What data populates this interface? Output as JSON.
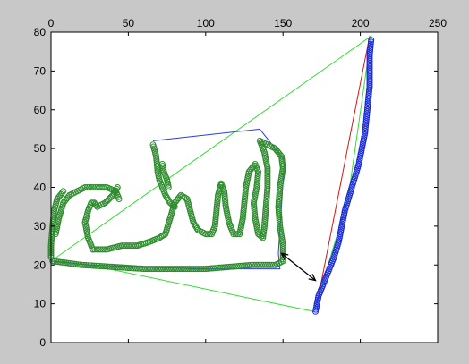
{
  "chart_data": {
    "type": "scatter",
    "title": "",
    "xlabel": "",
    "ylabel": "",
    "xlim": [
      0,
      250
    ],
    "ylim": [
      0,
      80
    ],
    "x_ticks": [
      0,
      50,
      100,
      150,
      200,
      250
    ],
    "y_ticks": [
      0,
      10,
      20,
      30,
      40,
      50,
      60,
      70,
      80
    ],
    "x_axis_position": "top",
    "grid": false,
    "legend": "none",
    "colors": {
      "figure_bg": "#c8c8c8",
      "axes_bg": "#ffffff",
      "green_stroke": "#2e8b2e",
      "blue_stroke": "#1a2bd6",
      "convex_hull": "#33dd33",
      "secondary_hull": "#2a3ae0",
      "red_line": "#e01010",
      "arrow": "#000000"
    },
    "series": [
      {
        "marker": "circle",
        "color": "#2e8b2e",
        "paths": [
          [
            [
              1,
              21
            ],
            [
              20,
              20
            ],
            [
              60,
              19
            ],
            [
              100,
              19
            ],
            [
              130,
              20
            ],
            [
              145,
              20
            ],
            [
              150,
              21
            ],
            [
              150,
              25
            ],
            [
              148,
              30
            ],
            [
              147,
              35
            ],
            [
              148,
              40
            ],
            [
              150,
              45
            ],
            [
              149,
              48
            ],
            [
              145,
              50
            ],
            [
              140,
              51
            ],
            [
              135,
              52
            ],
            [
              138,
              49
            ],
            [
              140,
              45
            ],
            [
              140,
              40
            ],
            [
              139,
              35
            ],
            [
              138,
              30
            ],
            [
              137,
              27
            ],
            [
              134,
              28
            ],
            [
              132,
              32
            ],
            [
              131,
              36
            ],
            [
              133,
              40
            ],
            [
              134,
              44
            ],
            [
              132,
              46
            ],
            [
              128,
              44
            ],
            [
              126,
              40
            ],
            [
              125,
              36
            ],
            [
              124,
              32
            ],
            [
              122,
              28
            ],
            [
              118,
              28
            ],
            [
              115,
              31
            ],
            [
              113,
              35
            ],
            [
              112,
              39
            ],
            [
              110,
              41
            ],
            [
              108,
              38
            ],
            [
              107,
              34
            ],
            [
              106,
              30
            ],
            [
              104,
              28
            ],
            [
              100,
              28
            ],
            [
              95,
              29
            ],
            [
              92,
              31
            ],
            [
              90,
              34
            ],
            [
              88,
              37
            ],
            [
              84,
              38
            ],
            [
              80,
              36
            ],
            [
              77,
              32
            ],
            [
              74,
              28
            ],
            [
              70,
              27
            ],
            [
              64,
              26
            ],
            [
              56,
              25
            ],
            [
              46,
              25
            ],
            [
              36,
              24
            ],
            [
              27,
              24
            ]
          ],
          [
            [
              27,
              24
            ],
            [
              24,
              27
            ],
            [
              22,
              31
            ],
            [
              24,
              34
            ],
            [
              26,
              36
            ],
            [
              28,
              36
            ],
            [
              30,
              35
            ]
          ],
          [
            [
              30,
              35
            ],
            [
              35,
              36
            ],
            [
              40,
              38
            ],
            [
              43,
              40
            ]
          ],
          [
            [
              3,
              28
            ],
            [
              5,
              32
            ],
            [
              8,
              36
            ],
            [
              12,
              38
            ],
            [
              17,
              39
            ],
            [
              22,
              40
            ],
            [
              30,
              40
            ],
            [
              36,
              40
            ],
            [
              42,
              39
            ],
            [
              44,
              37
            ]
          ],
          [
            [
              0,
              22
            ],
            [
              0,
              25
            ],
            [
              1,
              30
            ],
            [
              2,
              34
            ],
            [
              4,
              37
            ],
            [
              8,
              39
            ]
          ],
          [
            [
              66,
              51
            ],
            [
              68,
              48
            ],
            [
              69,
              44
            ],
            [
              70,
              42
            ],
            [
              72,
              40
            ],
            [
              74,
              38
            ],
            [
              77,
              36
            ],
            [
              80,
              35
            ]
          ],
          [
            [
              72,
              46
            ],
            [
              73,
              44
            ],
            [
              75,
              42
            ],
            [
              76,
              40
            ]
          ]
        ]
      },
      {
        "marker": "circle",
        "color": "#1a2bd6",
        "paths": [
          [
            [
              171,
              8
            ],
            [
              172,
              10
            ],
            [
              173,
              12
            ],
            [
              175,
              14
            ],
            [
              177,
              16
            ],
            [
              180,
              19
            ],
            [
              183,
              22
            ],
            [
              186,
              26
            ],
            [
              188,
              30
            ],
            [
              190,
              34
            ],
            [
              193,
              38
            ],
            [
              196,
              42
            ],
            [
              199,
              46
            ],
            [
              201,
              50
            ],
            [
              203,
              54
            ],
            [
              204,
              58
            ],
            [
              205,
              62
            ],
            [
              206,
              66
            ],
            [
              206,
              70
            ],
            [
              206,
              74
            ],
            [
              207,
              78
            ]
          ]
        ]
      }
    ],
    "lines": [
      {
        "color": "#33dd33",
        "points": [
          [
            0,
            21
          ],
          [
            207,
            79
          ],
          [
            192,
            37
          ],
          [
            170,
            8
          ],
          [
            25,
            20
          ],
          [
            0,
            21
          ]
        ]
      },
      {
        "color": "#2a3ae0",
        "points": [
          [
            66,
            52
          ],
          [
            135,
            55
          ],
          [
            151,
            47
          ],
          [
            147,
            23
          ],
          [
            148,
            19
          ],
          [
            96,
            19
          ],
          [
            24,
            20
          ],
          [
            0,
            21
          ]
        ]
      },
      {
        "color": "#e01010",
        "points": [
          [
            172,
            10
          ],
          [
            206,
            79
          ]
        ]
      }
    ],
    "arrow": {
      "from": [
        149,
        23
      ],
      "to": [
        171,
        16
      ],
      "double_headed": true,
      "color": "#000000"
    }
  }
}
